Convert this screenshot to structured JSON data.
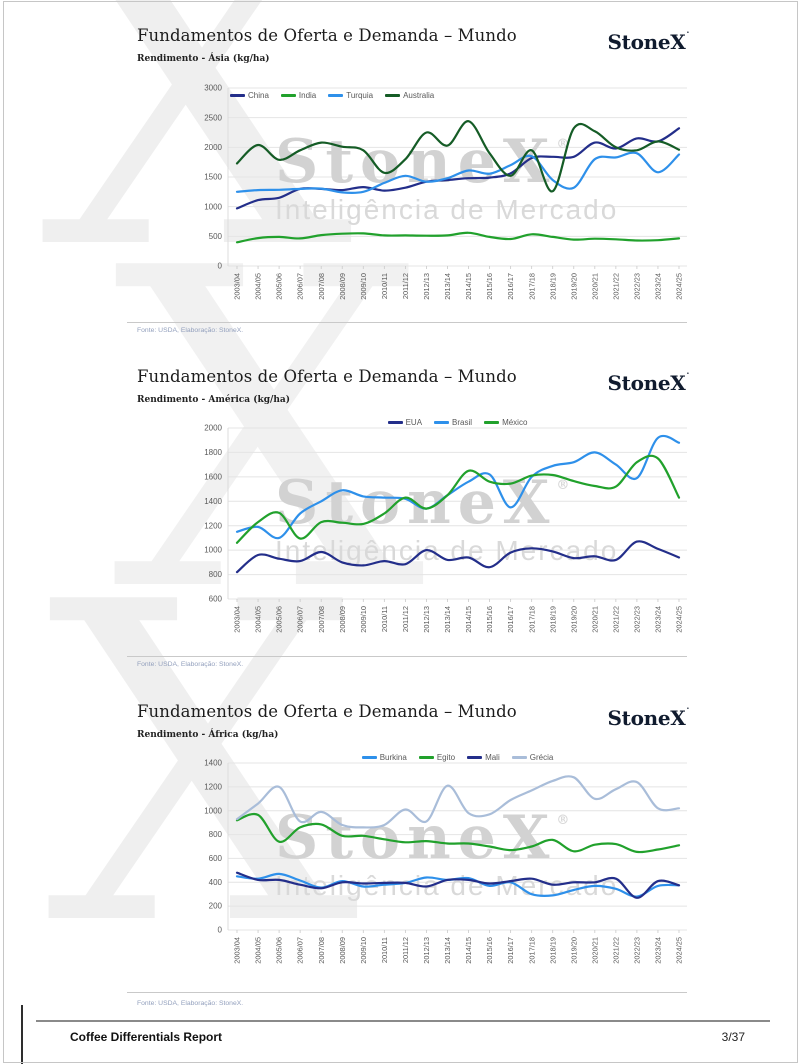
{
  "brand": {
    "logo_text": "StoneX",
    "trademark": "·",
    "x_glyph": "X",
    "watermark_text": "StoneX",
    "watermark_reg": "®",
    "watermark_tagline": "Inteligência de Mercado"
  },
  "colors": {
    "navy": "#232e8a",
    "green": "#21a12c",
    "lightblue": "#2e90ea",
    "darkgreen": "#155c26",
    "steelblue": "#a9bdd9",
    "grid": "#e4e4e4",
    "axis_text": "#595959",
    "source_text": "#93a0bd",
    "logo_text": "#101b2e",
    "watermark": "#d2d2d2"
  },
  "footer": {
    "report_title": "Coffee Differentials Report",
    "page_number": "3/37"
  },
  "chart_data": [
    {
      "type": "line",
      "title": "Fundamentos de Oferta e Demanda – Mundo",
      "subtitle": "Rendimento - Ásia (kg/ha)",
      "source": "Fonte: USDA, Elaboração: StoneX.",
      "xlabel": "",
      "ylabel": "",
      "ylim": [
        0,
        3000
      ],
      "yticks": [
        0,
        500,
        1000,
        1500,
        2000,
        2500,
        3000
      ],
      "grid": true,
      "legend_position": "top-left",
      "categories": [
        "2003/04",
        "2004/05",
        "2005/06",
        "2006/07",
        "2007/08",
        "2008/09",
        "2009/10",
        "2010/11",
        "2011/12",
        "2012/13",
        "2013/14",
        "2014/15",
        "2015/16",
        "2016/17",
        "2017/18",
        "2018/19",
        "2019/20",
        "2020/21",
        "2021/22",
        "2022/23",
        "2023/24",
        "2024/25"
      ],
      "series": [
        {
          "name": "China",
          "color": "#232e8a",
          "values": [
            970,
            1110,
            1150,
            1300,
            1300,
            1280,
            1330,
            1270,
            1320,
            1420,
            1450,
            1480,
            1490,
            1560,
            1820,
            1840,
            1840,
            2080,
            1980,
            2150,
            2100,
            2320
          ]
        },
        {
          "name": "India",
          "color": "#21a12c",
          "values": [
            400,
            470,
            490,
            465,
            520,
            545,
            550,
            515,
            515,
            510,
            515,
            560,
            490,
            455,
            535,
            490,
            445,
            460,
            450,
            430,
            435,
            465
          ]
        },
        {
          "name": "Turquia",
          "color": "#2e90ea",
          "values": [
            1250,
            1280,
            1285,
            1300,
            1305,
            1240,
            1250,
            1400,
            1520,
            1420,
            1480,
            1610,
            1555,
            1700,
            1850,
            1450,
            1320,
            1800,
            1830,
            1900,
            1580,
            1880
          ]
        },
        {
          "name": "Australia",
          "color": "#155c26",
          "values": [
            1730,
            2040,
            1790,
            1950,
            2080,
            2010,
            1950,
            1570,
            1800,
            2250,
            2030,
            2440,
            1900,
            1520,
            1950,
            1260,
            2320,
            2270,
            2000,
            1950,
            2100,
            1960
          ]
        }
      ]
    },
    {
      "type": "line",
      "title": "Fundamentos de Oferta e Demanda – Mundo",
      "subtitle": "Rendimento - América (kg/ha)",
      "source": "Fonte: USDA, Elaboração: StoneX.",
      "xlabel": "",
      "ylabel": "",
      "ylim": [
        600,
        2000
      ],
      "yticks": [
        600,
        800,
        1000,
        1200,
        1400,
        1600,
        1800,
        2000
      ],
      "grid": true,
      "legend_position": "top-center",
      "categories": [
        "2003/04",
        "2004/05",
        "2005/06",
        "2006/07",
        "2007/08",
        "2008/09",
        "2009/10",
        "2010/11",
        "2011/12",
        "2012/13",
        "2013/14",
        "2014/15",
        "2015/16",
        "2016/17",
        "2017/18",
        "2018/19",
        "2019/20",
        "2020/21",
        "2021/22",
        "2022/23",
        "2023/24",
        "2024/25"
      ],
      "series": [
        {
          "name": "EUA",
          "color": "#232e8a",
          "values": [
            820,
            960,
            930,
            910,
            985,
            900,
            875,
            910,
            885,
            1000,
            920,
            940,
            860,
            980,
            1015,
            990,
            935,
            950,
            920,
            1070,
            1010,
            940
          ]
        },
        {
          "name": "Brasil",
          "color": "#2e90ea",
          "values": [
            1150,
            1190,
            1100,
            1300,
            1400,
            1490,
            1440,
            1430,
            1420,
            1340,
            1450,
            1560,
            1620,
            1350,
            1600,
            1690,
            1720,
            1800,
            1700,
            1590,
            1920,
            1880
          ]
        },
        {
          "name": "México",
          "color": "#21a12c",
          "values": [
            1060,
            1230,
            1305,
            1095,
            1230,
            1225,
            1215,
            1300,
            1430,
            1340,
            1450,
            1650,
            1560,
            1545,
            1610,
            1615,
            1565,
            1525,
            1520,
            1720,
            1750,
            1430
          ]
        }
      ]
    },
    {
      "type": "line",
      "title": "Fundamentos de Oferta e Demanda – Mundo",
      "subtitle": "Rendimento - África (kg/ha)",
      "source": "Fonte: USDA, Elaboração: StoneX.",
      "xlabel": "",
      "ylabel": "",
      "ylim": [
        0,
        1400
      ],
      "yticks": [
        0,
        200,
        400,
        600,
        800,
        1000,
        1200,
        1400
      ],
      "grid": true,
      "legend_position": "top-center",
      "categories": [
        "2003/04",
        "2004/05",
        "2005/06",
        "2006/07",
        "2007/08",
        "2008/09",
        "2009/10",
        "2010/11",
        "2011/12",
        "2012/13",
        "2013/14",
        "2014/15",
        "2015/16",
        "2016/17",
        "2017/18",
        "2018/19",
        "2019/20",
        "2020/21",
        "2021/22",
        "2022/23",
        "2023/24",
        "2024/25"
      ],
      "series": [
        {
          "name": "Burkina",
          "color": "#2e90ea",
          "values": [
            450,
            430,
            470,
            415,
            355,
            410,
            365,
            380,
            395,
            440,
            420,
            435,
            370,
            400,
            300,
            290,
            335,
            370,
            345,
            280,
            370,
            375
          ]
        },
        {
          "name": "Egito",
          "color": "#21a12c",
          "values": [
            920,
            965,
            740,
            860,
            885,
            790,
            790,
            760,
            735,
            745,
            725,
            725,
            700,
            670,
            700,
            755,
            660,
            715,
            720,
            655,
            675,
            710
          ]
        },
        {
          "name": "Mali",
          "color": "#232e8a",
          "values": [
            480,
            420,
            420,
            380,
            350,
            400,
            390,
            395,
            395,
            365,
            420,
            420,
            390,
            410,
            430,
            380,
            400,
            400,
            430,
            270,
            410,
            375
          ]
        },
        {
          "name": "Grécia",
          "color": "#a9bdd9",
          "values": [
            930,
            1060,
            1200,
            910,
            990,
            880,
            860,
            880,
            1010,
            910,
            1210,
            980,
            970,
            1090,
            1170,
            1250,
            1280,
            1100,
            1180,
            1240,
            1020,
            1020
          ]
        }
      ]
    }
  ]
}
